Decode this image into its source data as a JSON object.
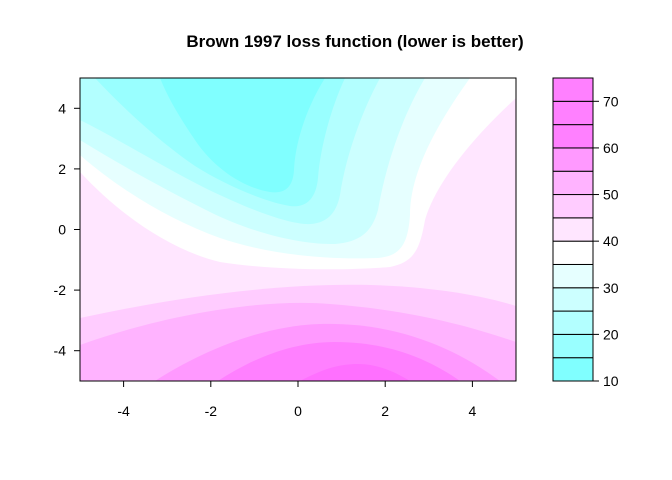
{
  "chart_data": {
    "type": "heatmap",
    "subtype": "filled-contour",
    "title": "Brown 1997 loss function (lower is better)",
    "xlabel": "",
    "ylabel": "",
    "xlim": [
      -5,
      5
    ],
    "ylim": [
      -5,
      5
    ],
    "x_ticks": [
      -4,
      -2,
      0,
      2,
      4
    ],
    "y_ticks": [
      -4,
      -2,
      0,
      2,
      4
    ],
    "legend_position": "right",
    "colorbar": {
      "range": [
        10,
        75
      ],
      "ticks": [
        10,
        20,
        30,
        40,
        50,
        60,
        70
      ],
      "levels": [
        10,
        15,
        20,
        25,
        30,
        35,
        40,
        45,
        50,
        55,
        60,
        65,
        70,
        75
      ],
      "colors": [
        "#80ffff",
        "#99ffff",
        "#b3ffff",
        "#ccffff",
        "#e6ffff",
        "#ffffff",
        "#ffe6ff",
        "#ffccff",
        "#ffb3ff",
        "#ff99ff",
        "#ff80ff",
        "#ff80ff",
        "#ff80ff"
      ]
    },
    "region_levels": [
      {
        "level": 10,
        "color": "#80ffff"
      },
      {
        "level": 15,
        "color": "#99ffff"
      },
      {
        "level": 20,
        "color": "#b3ffff"
      },
      {
        "level": 25,
        "color": "#ccffff"
      },
      {
        "level": 35,
        "color": "#e6ffff"
      },
      {
        "level": 40,
        "color": "#ffffff"
      },
      {
        "level": 45,
        "color": "#ffe6ff"
      },
      {
        "level": 55,
        "color": "#ffccff"
      },
      {
        "level": 60,
        "color": "#ffb3ff"
      },
      {
        "level": 65,
        "color": "#ff99ff"
      },
      {
        "level": 70,
        "color": "#ff80ff"
      }
    ],
    "minimum_region": {
      "x": -0.5,
      "y": 3.0,
      "value": 10
    },
    "maximum_region": {
      "x": 1.0,
      "y": -5.0,
      "value": 75
    }
  }
}
